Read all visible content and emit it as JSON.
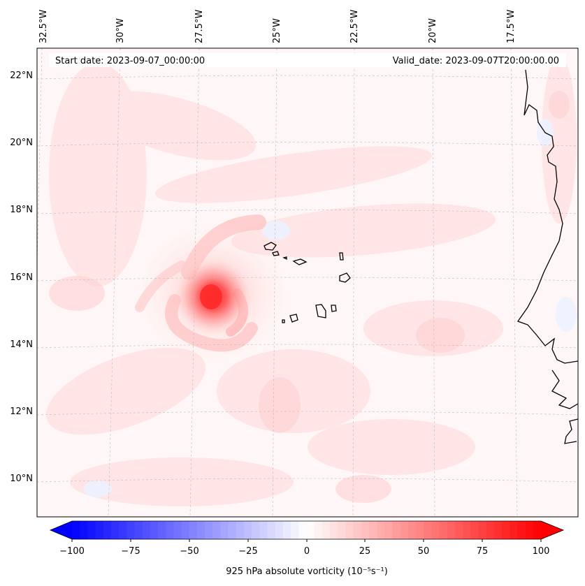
{
  "header": {
    "start_date": "Start date: 2023-09-07_00:00:00",
    "valid_date": "Valid_date: 2023-09-07T20:00:00.00"
  },
  "longitude_labels": [
    "32.5°W",
    "30°W",
    "27.5°W",
    "25°W",
    "22.5°W",
    "20°W",
    "17.5°W"
  ],
  "latitude_labels": [
    "22°N",
    "20°N",
    "18°N",
    "16°N",
    "14°N",
    "12°N",
    "10°N"
  ],
  "colorbar": {
    "label": "925 hPa absolute vorticity (10⁻⁵s⁻¹)",
    "ticks": [
      "−100",
      "−75",
      "−50",
      "−25",
      "0",
      "25",
      "50",
      "75",
      "100"
    ],
    "min": -100,
    "max": 100,
    "levels": 60,
    "negative_color": "#0000ff",
    "positive_color": "#ff0000",
    "neutral_color": "#ffffff"
  },
  "features": {
    "vorticity_max_lon": -27.0,
    "vorticity_max_lat": 15.4,
    "vorticity_max_value": 90
  },
  "colors": {
    "background": "#fff7f7",
    "grid": "#bbbbbb",
    "coast": "#000000"
  }
}
